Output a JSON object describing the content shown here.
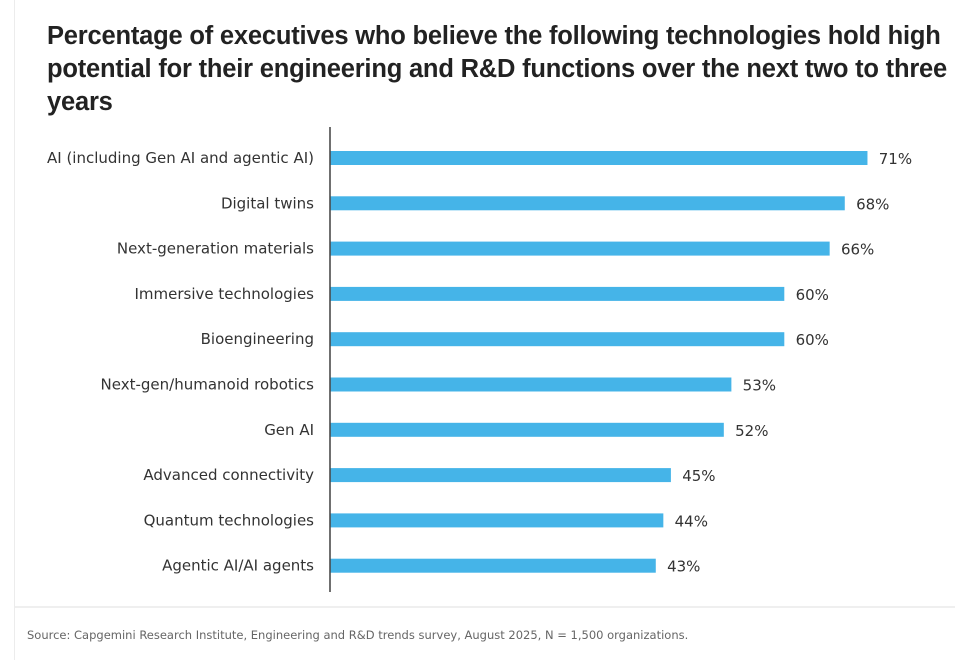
{
  "chart_data": {
    "type": "bar",
    "orientation": "horizontal",
    "title": "Percentage of executives who believe the following technologies hold high potential for their engineering and R&D functions over the next two to three years",
    "categories": [
      "AI (including Gen AI and agentic AI)",
      "Digital twins",
      "Next-generation materials",
      "Immersive technologies",
      "Bioengineering",
      "Next-gen/humanoid robotics",
      "Gen AI",
      "Advanced connectivity",
      "Quantum technologies",
      "Agentic AI/AI agents"
    ],
    "values": [
      71,
      68,
      66,
      60,
      60,
      53,
      52,
      45,
      44,
      43
    ],
    "value_labels": [
      "71%",
      "68%",
      "66%",
      "60%",
      "60%",
      "53%",
      "52%",
      "45%",
      "44%",
      "43%"
    ],
    "unit": "%",
    "xlabel": "",
    "ylabel": "",
    "xlim": [
      0,
      71
    ],
    "grid": false,
    "legend": "none",
    "bar_color": "#45B4E8"
  },
  "footer": {
    "source": "Source: Capgemini Research Institute, Engineering and R&D trends survey, August 2025, N = 1,500 organizations."
  }
}
